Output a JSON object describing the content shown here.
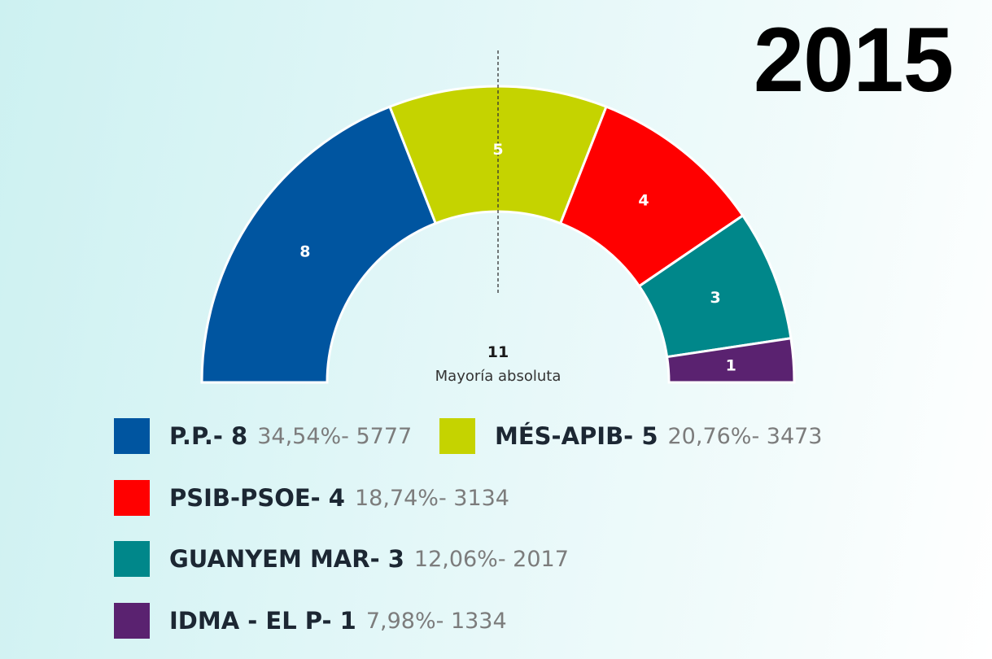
{
  "year": "2015",
  "majority": {
    "value": "11",
    "label": "Mayoría absoluta"
  },
  "chart_data": {
    "type": "pie",
    "variant": "parliament-semicircle",
    "total_seats": 21,
    "majority_seats": 11,
    "series": [
      {
        "name": "P.P.",
        "seats": 8,
        "percent": "34,54%",
        "votes": "5777",
        "color": "#0055a0"
      },
      {
        "name": "MÉS-APIB",
        "seats": 5,
        "percent": "20,76%",
        "votes": "3473",
        "color": "#c5d300"
      },
      {
        "name": "PSIB-PSOE",
        "seats": 4,
        "percent": "18,74%",
        "votes": "3134",
        "color": "#ff0000"
      },
      {
        "name": "GUANYEM MAR",
        "seats": 3,
        "percent": "12,06%",
        "votes": "2017",
        "color": "#00878a"
      },
      {
        "name": "IDMA - EL P",
        "seats": 1,
        "percent": "7,98%",
        "votes": "1334",
        "color": "#5a2270"
      }
    ]
  },
  "legend": [
    {
      "label": "P.P.- 8",
      "stat": "34,54%- 5777"
    },
    {
      "label": "MÉS-APIB- 5",
      "stat": "20,76%- 3473"
    },
    {
      "label": "PSIB-PSOE- 4",
      "stat": "18,74%- 3134"
    },
    {
      "label": "GUANYEM MAR- 3",
      "stat": "12,06%- 2017"
    },
    {
      "label": "IDMA - EL P- 1",
      "stat": "7,98%- 1334"
    }
  ]
}
